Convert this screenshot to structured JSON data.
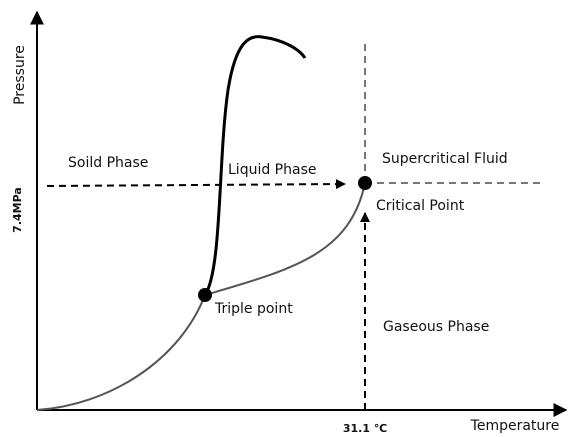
{
  "axes": {
    "y_label": "Pressure",
    "x_label": "Temperature",
    "y_marker": "7.4MPa",
    "x_marker": "31.1 ℃"
  },
  "regions": {
    "solid": "Soild Phase",
    "liquid": "Liquid Phase",
    "supercritical": "Supercritical Fluid",
    "gaseous": "Gaseous Phase"
  },
  "points": {
    "critical": "Critical Point",
    "triple": "Triple point"
  }
}
